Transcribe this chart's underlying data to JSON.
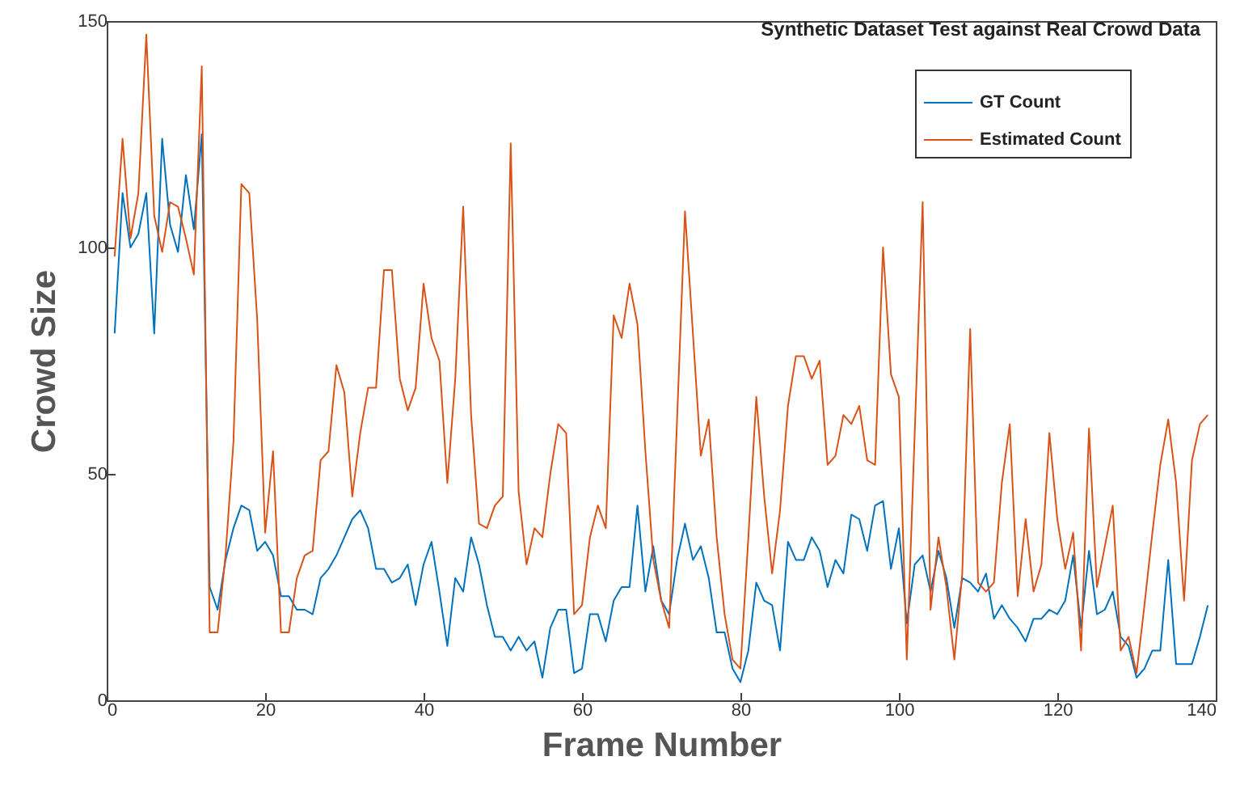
{
  "chart_data": {
    "type": "line",
    "title": "Synthetic Dataset Test against Real Crowd Data",
    "xlabel": "Frame Number",
    "ylabel": "Crowd Size",
    "x": [
      1,
      2,
      3,
      4,
      5,
      6,
      7,
      8,
      9,
      10,
      11,
      12,
      13,
      14,
      15,
      16,
      17,
      18,
      19,
      20,
      21,
      22,
      23,
      24,
      25,
      26,
      27,
      28,
      29,
      30,
      31,
      32,
      33,
      34,
      35,
      36,
      37,
      38,
      39,
      40,
      41,
      42,
      43,
      44,
      45,
      46,
      47,
      48,
      49,
      50,
      51,
      52,
      53,
      54,
      55,
      56,
      57,
      58,
      59,
      60,
      61,
      62,
      63,
      64,
      65,
      66,
      67,
      68,
      69,
      70,
      71,
      72,
      73,
      74,
      75,
      76,
      77,
      78,
      79,
      80,
      81,
      82,
      83,
      84,
      85,
      86,
      87,
      88,
      89,
      90,
      91,
      92,
      93,
      94,
      95,
      96,
      97,
      98,
      99,
      100,
      101,
      102,
      103,
      104,
      105,
      106,
      107,
      108,
      109,
      110,
      111,
      112,
      113,
      114,
      115,
      116,
      117,
      118,
      119,
      120,
      121,
      122,
      123,
      124,
      125,
      126,
      127,
      128,
      129,
      130,
      131,
      132,
      133,
      134,
      135,
      136,
      137,
      138,
      139
    ],
    "series": [
      {
        "name": "GT Count",
        "color": "#0072bd",
        "values": [
          81,
          112,
          100,
          103,
          112,
          81,
          124,
          105,
          99,
          116,
          104,
          125,
          25,
          20,
          31,
          38,
          43,
          42,
          33,
          35,
          32,
          23,
          23,
          20,
          20,
          19,
          27,
          29,
          32,
          36,
          40,
          42,
          38,
          29,
          29,
          26,
          27,
          30,
          21,
          30,
          35,
          24,
          12,
          27,
          24,
          36,
          30,
          21,
          14,
          14,
          11,
          14,
          11,
          13,
          5,
          16,
          20,
          20,
          6,
          7,
          19,
          19,
          13,
          22,
          25,
          25,
          43,
          24,
          34,
          22,
          19,
          31,
          39,
          31,
          34,
          27,
          15,
          15,
          7,
          4,
          11,
          26,
          22,
          21,
          11,
          35,
          31,
          31,
          36,
          33,
          25,
          31,
          28,
          41,
          40,
          33,
          43,
          44,
          29,
          38,
          17,
          30,
          32,
          24,
          33,
          27,
          16,
          27,
          26,
          24,
          28,
          18,
          21,
          18,
          16,
          13,
          18,
          18,
          20,
          19,
          22,
          32,
          16,
          33,
          19,
          20,
          24,
          14,
          12,
          5,
          7,
          11,
          11,
          31,
          8,
          8,
          8,
          14,
          21
        ]
      },
      {
        "name": "Estimated Count",
        "color": "#d95319",
        "values": [
          98,
          124,
          102,
          112,
          147,
          107,
          99,
          110,
          109,
          102,
          94,
          140,
          15,
          15,
          32,
          57,
          114,
          112,
          84,
          37,
          55,
          15,
          15,
          27,
          32,
          33,
          53,
          55,
          74,
          68,
          45,
          59,
          69,
          69,
          95,
          95,
          71,
          64,
          69,
          92,
          80,
          75,
          48,
          71,
          109,
          63,
          39,
          38,
          43,
          45,
          123,
          46,
          30,
          38,
          36,
          50,
          61,
          59,
          19,
          21,
          36,
          43,
          38,
          85,
          80,
          92,
          83,
          55,
          31,
          22,
          16,
          62,
          108,
          81,
          54,
          62,
          36,
          19,
          9,
          7,
          36,
          67,
          45,
          28,
          42,
          65,
          76,
          76,
          71,
          75,
          52,
          54,
          63,
          61,
          65,
          53,
          52,
          100,
          72,
          67,
          9,
          59,
          110,
          20,
          36,
          25,
          9,
          28,
          82,
          26,
          24,
          26,
          48,
          61,
          23,
          40,
          24,
          30,
          59,
          40,
          29,
          37,
          11,
          60,
          25,
          34,
          43,
          11,
          14,
          6,
          21,
          37,
          52,
          62,
          48,
          22,
          53,
          61,
          63
        ]
      }
    ],
    "xlim": [
      0,
      140
    ],
    "xticks": [
      0,
      20,
      40,
      60,
      80,
      100,
      120,
      140
    ],
    "ylim": [
      0,
      150
    ],
    "yticks": [
      0,
      50,
      100,
      150
    ],
    "grid": false,
    "legend": "top right"
  }
}
